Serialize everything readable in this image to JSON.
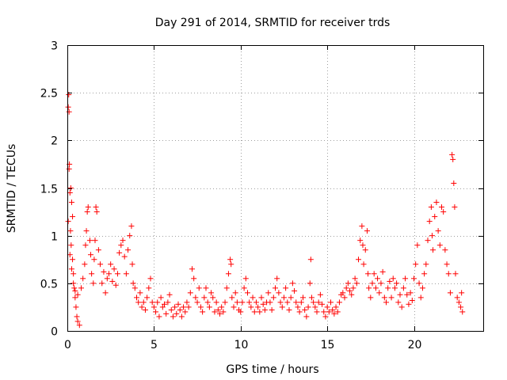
{
  "chart_data": {
    "type": "scatter",
    "title": "Day 291 of 2014, SRMTID for receiver trds",
    "xlabel": "GPS time / hours",
    "ylabel": "SRMTID / TECUs",
    "xlim": [
      0,
      24
    ],
    "ylim": [
      0,
      3
    ],
    "x_ticks": [
      {
        "value": 0,
        "label": "0"
      },
      {
        "value": 5,
        "label": "5"
      },
      {
        "value": 10,
        "label": "10"
      },
      {
        "value": 15,
        "label": "15"
      },
      {
        "value": 20,
        "label": "20"
      }
    ],
    "y_ticks": [
      {
        "value": 0,
        "label": "0"
      },
      {
        "value": 0.5,
        "label": "0.5"
      },
      {
        "value": 1,
        "label": "1"
      },
      {
        "value": 1.5,
        "label": "1.5"
      },
      {
        "value": 2,
        "label": "2"
      },
      {
        "value": 2.5,
        "label": "2.5"
      },
      {
        "value": 3,
        "label": "3"
      }
    ],
    "grid": true,
    "marker": "+",
    "marker_color": "#ff0000",
    "series": [
      {
        "name": "SRMTID",
        "points": [
          [
            0.05,
            2.35
          ],
          [
            0.08,
            2.48
          ],
          [
            0.1,
            2.3
          ],
          [
            0.12,
            1.75
          ],
          [
            0.1,
            1.7
          ],
          [
            0.15,
            1.45
          ],
          [
            0.2,
            1.5
          ],
          [
            0.25,
            1.35
          ],
          [
            0.3,
            1.2
          ],
          [
            0.05,
            1.15
          ],
          [
            0.18,
            1.05
          ],
          [
            0.22,
            0.9
          ],
          [
            0.3,
            0.75
          ],
          [
            0.35,
            0.6
          ],
          [
            0.4,
            0.45
          ],
          [
            0.45,
            0.35
          ],
          [
            0.5,
            0.25
          ],
          [
            0.55,
            0.15
          ],
          [
            0.6,
            0.1
          ],
          [
            0.7,
            0.06
          ],
          [
            0.15,
            0.8
          ],
          [
            0.25,
            0.65
          ],
          [
            0.35,
            0.5
          ],
          [
            0.45,
            0.42
          ],
          [
            0.6,
            0.38
          ],
          [
            0.8,
            0.45
          ],
          [
            0.9,
            0.55
          ],
          [
            1.0,
            0.7
          ],
          [
            1.05,
            0.9
          ],
          [
            1.1,
            1.05
          ],
          [
            1.15,
            1.25
          ],
          [
            1.2,
            1.3
          ],
          [
            1.3,
            0.95
          ],
          [
            1.35,
            0.8
          ],
          [
            1.4,
            0.6
          ],
          [
            1.5,
            0.5
          ],
          [
            1.55,
            0.75
          ],
          [
            1.6,
            0.95
          ],
          [
            1.65,
            1.3
          ],
          [
            1.7,
            1.25
          ],
          [
            1.8,
            0.85
          ],
          [
            1.9,
            0.7
          ],
          [
            2.0,
            0.5
          ],
          [
            2.1,
            0.62
          ],
          [
            2.2,
            0.4
          ],
          [
            2.3,
            0.55
          ],
          [
            2.4,
            0.6
          ],
          [
            2.5,
            0.7
          ],
          [
            2.6,
            0.52
          ],
          [
            2.7,
            0.65
          ],
          [
            2.8,
            0.48
          ],
          [
            2.9,
            0.6
          ],
          [
            3.0,
            0.82
          ],
          [
            3.1,
            0.9
          ],
          [
            3.2,
            0.95
          ],
          [
            3.3,
            0.78
          ],
          [
            3.4,
            0.6
          ],
          [
            3.5,
            0.85
          ],
          [
            3.6,
            1.0
          ],
          [
            3.7,
            1.1
          ],
          [
            3.75,
            0.7
          ],
          [
            3.8,
            0.5
          ],
          [
            3.9,
            0.45
          ],
          [
            4.0,
            0.35
          ],
          [
            4.1,
            0.3
          ],
          [
            4.2,
            0.4
          ],
          [
            4.3,
            0.25
          ],
          [
            4.4,
            0.3
          ],
          [
            4.5,
            0.22
          ],
          [
            4.6,
            0.35
          ],
          [
            4.7,
            0.45
          ],
          [
            4.8,
            0.55
          ],
          [
            4.9,
            0.3
          ],
          [
            5.0,
            0.25
          ],
          [
            5.1,
            0.2
          ],
          [
            5.2,
            0.3
          ],
          [
            5.3,
            0.15
          ],
          [
            5.4,
            0.35
          ],
          [
            5.5,
            0.25
          ],
          [
            5.6,
            0.28
          ],
          [
            5.7,
            0.18
          ],
          [
            5.8,
            0.3
          ],
          [
            5.9,
            0.38
          ],
          [
            6.0,
            0.22
          ],
          [
            6.1,
            0.15
          ],
          [
            6.2,
            0.25
          ],
          [
            6.3,
            0.18
          ],
          [
            6.4,
            0.28
          ],
          [
            6.5,
            0.22
          ],
          [
            6.6,
            0.15
          ],
          [
            6.7,
            0.25
          ],
          [
            6.8,
            0.2
          ],
          [
            6.9,
            0.3
          ],
          [
            7.0,
            0.25
          ],
          [
            7.1,
            0.4
          ],
          [
            7.2,
            0.65
          ],
          [
            7.3,
            0.55
          ],
          [
            7.4,
            0.35
          ],
          [
            7.5,
            0.3
          ],
          [
            7.6,
            0.45
          ],
          [
            7.7,
            0.25
          ],
          [
            7.8,
            0.2
          ],
          [
            7.9,
            0.35
          ],
          [
            8.0,
            0.45
          ],
          [
            8.1,
            0.3
          ],
          [
            8.2,
            0.25
          ],
          [
            8.3,
            0.4
          ],
          [
            8.4,
            0.35
          ],
          [
            8.5,
            0.2
          ],
          [
            8.6,
            0.3
          ],
          [
            8.7,
            0.22
          ],
          [
            8.8,
            0.18
          ],
          [
            8.9,
            0.25
          ],
          [
            9.0,
            0.2
          ],
          [
            9.1,
            0.3
          ],
          [
            9.2,
            0.45
          ],
          [
            9.3,
            0.6
          ],
          [
            9.4,
            0.75
          ],
          [
            9.45,
            0.7
          ],
          [
            9.5,
            0.35
          ],
          [
            9.6,
            0.25
          ],
          [
            9.7,
            0.4
          ],
          [
            9.8,
            0.3
          ],
          [
            9.9,
            0.22
          ],
          [
            10.0,
            0.2
          ],
          [
            10.1,
            0.3
          ],
          [
            10.2,
            0.45
          ],
          [
            10.3,
            0.55
          ],
          [
            10.4,
            0.4
          ],
          [
            10.5,
            0.3
          ],
          [
            10.6,
            0.25
          ],
          [
            10.7,
            0.35
          ],
          [
            10.8,
            0.2
          ],
          [
            10.9,
            0.3
          ],
          [
            11.0,
            0.25
          ],
          [
            11.1,
            0.2
          ],
          [
            11.2,
            0.35
          ],
          [
            11.3,
            0.28
          ],
          [
            11.4,
            0.22
          ],
          [
            11.5,
            0.3
          ],
          [
            11.6,
            0.4
          ],
          [
            11.7,
            0.3
          ],
          [
            11.8,
            0.22
          ],
          [
            11.9,
            0.35
          ],
          [
            12.0,
            0.45
          ],
          [
            12.1,
            0.55
          ],
          [
            12.2,
            0.4
          ],
          [
            12.3,
            0.3
          ],
          [
            12.4,
            0.25
          ],
          [
            12.5,
            0.35
          ],
          [
            12.6,
            0.45
          ],
          [
            12.7,
            0.3
          ],
          [
            12.8,
            0.22
          ],
          [
            12.9,
            0.35
          ],
          [
            13.0,
            0.5
          ],
          [
            13.1,
            0.42
          ],
          [
            13.2,
            0.3
          ],
          [
            13.3,
            0.25
          ],
          [
            13.4,
            0.2
          ],
          [
            13.5,
            0.3
          ],
          [
            13.6,
            0.35
          ],
          [
            13.7,
            0.22
          ],
          [
            13.8,
            0.15
          ],
          [
            13.9,
            0.25
          ],
          [
            14.0,
            0.5
          ],
          [
            14.05,
            0.75
          ],
          [
            14.1,
            0.35
          ],
          [
            14.2,
            0.3
          ],
          [
            14.3,
            0.25
          ],
          [
            14.4,
            0.2
          ],
          [
            14.5,
            0.3
          ],
          [
            14.6,
            0.38
          ],
          [
            14.7,
            0.28
          ],
          [
            14.8,
            0.2
          ],
          [
            14.9,
            0.15
          ],
          [
            15.0,
            0.25
          ],
          [
            15.1,
            0.2
          ],
          [
            15.2,
            0.3
          ],
          [
            15.3,
            0.22
          ],
          [
            15.4,
            0.18
          ],
          [
            15.5,
            0.25
          ],
          [
            15.6,
            0.2
          ],
          [
            15.7,
            0.3
          ],
          [
            15.8,
            0.38
          ],
          [
            15.9,
            0.4
          ],
          [
            16.0,
            0.35
          ],
          [
            16.1,
            0.45
          ],
          [
            16.2,
            0.5
          ],
          [
            16.3,
            0.42
          ],
          [
            16.4,
            0.38
          ],
          [
            16.5,
            0.45
          ],
          [
            16.6,
            0.55
          ],
          [
            16.7,
            0.5
          ],
          [
            16.8,
            0.75
          ],
          [
            16.9,
            0.95
          ],
          [
            17.0,
            1.1
          ],
          [
            17.05,
            0.9
          ],
          [
            17.1,
            0.7
          ],
          [
            17.2,
            0.85
          ],
          [
            17.3,
            1.05
          ],
          [
            17.35,
            0.6
          ],
          [
            17.4,
            0.45
          ],
          [
            17.5,
            0.35
          ],
          [
            17.6,
            0.5
          ],
          [
            17.7,
            0.6
          ],
          [
            17.8,
            0.45
          ],
          [
            17.9,
            0.55
          ],
          [
            18.0,
            0.4
          ],
          [
            18.1,
            0.5
          ],
          [
            18.2,
            0.62
          ],
          [
            18.3,
            0.35
          ],
          [
            18.4,
            0.3
          ],
          [
            18.5,
            0.45
          ],
          [
            18.6,
            0.52
          ],
          [
            18.7,
            0.35
          ],
          [
            18.8,
            0.55
          ],
          [
            18.9,
            0.45
          ],
          [
            19.0,
            0.5
          ],
          [
            19.1,
            0.3
          ],
          [
            19.2,
            0.38
          ],
          [
            19.3,
            0.25
          ],
          [
            19.4,
            0.45
          ],
          [
            19.5,
            0.55
          ],
          [
            19.6,
            0.38
          ],
          [
            19.7,
            0.28
          ],
          [
            19.8,
            0.4
          ],
          [
            19.9,
            0.32
          ],
          [
            20.0,
            0.55
          ],
          [
            20.1,
            0.7
          ],
          [
            20.2,
            0.9
          ],
          [
            20.3,
            0.5
          ],
          [
            20.4,
            0.35
          ],
          [
            20.5,
            0.45
          ],
          [
            20.6,
            0.6
          ],
          [
            20.7,
            0.7
          ],
          [
            20.8,
            0.95
          ],
          [
            20.9,
            1.15
          ],
          [
            21.0,
            1.3
          ],
          [
            21.05,
            1.0
          ],
          [
            21.1,
            0.85
          ],
          [
            21.2,
            1.2
          ],
          [
            21.3,
            1.35
          ],
          [
            21.4,
            1.05
          ],
          [
            21.5,
            0.9
          ],
          [
            21.6,
            1.3
          ],
          [
            21.7,
            1.25
          ],
          [
            21.8,
            0.85
          ],
          [
            21.9,
            0.7
          ],
          [
            22.0,
            0.6
          ],
          [
            22.1,
            0.4
          ],
          [
            22.2,
            1.85
          ],
          [
            22.25,
            1.8
          ],
          [
            22.3,
            1.55
          ],
          [
            22.35,
            1.3
          ],
          [
            22.4,
            0.6
          ],
          [
            22.5,
            0.35
          ],
          [
            22.6,
            0.3
          ],
          [
            22.7,
            0.25
          ],
          [
            22.8,
            0.2
          ],
          [
            22.75,
            0.4
          ]
        ]
      }
    ]
  }
}
